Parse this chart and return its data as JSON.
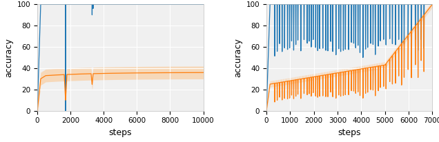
{
  "left": {
    "xlim": [
      0,
      10000
    ],
    "ylim": [
      0,
      100
    ],
    "xticks": [
      0,
      2000,
      4000,
      6000,
      8000,
      10000
    ],
    "yticks": [
      0,
      20,
      40,
      60,
      80,
      100
    ],
    "xlabel": "steps",
    "ylabel": "accuracy",
    "blue_color": "#1f77b4",
    "orange_color": "#ff7f0e",
    "orange_fill_color": "#ffbb78",
    "bg_color": "#f0f0f0"
  },
  "right": {
    "xlim": [
      0,
      7000
    ],
    "ylim": [
      0,
      100
    ],
    "xticks": [
      0,
      1000,
      2000,
      3000,
      4000,
      5000,
      6000,
      7000
    ],
    "yticks": [
      0,
      20,
      40,
      60,
      80,
      100
    ],
    "xlabel": "steps",
    "ylabel": "accuracy",
    "blue_color": "#1f77b4",
    "orange_color": "#ff7f0e",
    "orange_fill_color": "#ffbb78",
    "bg_color": "#f0f0f0"
  }
}
